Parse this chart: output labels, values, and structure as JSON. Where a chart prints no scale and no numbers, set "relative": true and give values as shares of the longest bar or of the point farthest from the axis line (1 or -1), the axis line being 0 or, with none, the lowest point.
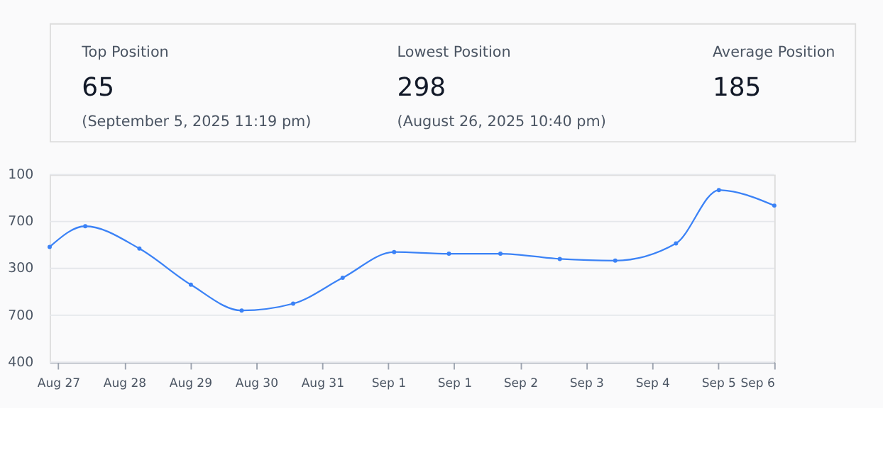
{
  "chart_data": [
    {
      "type": "other",
      "annotations": [
        "Top Position",
        "65",
        "(September 5, 2025 11:19 pm)",
        "Lowest Position",
        "298",
        "(August 26, 2025 10:40 pm)",
        "Average Position",
        "185"
      ]
    },
    {
      "type": "line",
      "relative": true,
      "x": [
        "2025-08-27T03:46",
        "2025-08-27T16:04",
        "2025-08-28T10:46",
        "2025-08-29T04:33",
        "2025-08-29T22:06",
        "2025-08-30T15:53",
        "2025-08-31T08:59",
        "2025-09-01T02:46",
        "2025-09-01T21:42",
        "2025-09-02T15:29",
        "2025-09-03T12:00",
        "2025-09-04T07:09",
        "2025-09-05T04:08",
        "2025-09-05T18:57",
        "2025-09-06T14:06"
      ],
      "series": [
        {
          "color": "#3b82f6",
          "values": [
            0.67,
            0.79,
            0.66,
            0.45,
            0.3,
            0.34,
            0.49,
            0.64,
            0.63,
            0.63,
            0.6,
            0.59,
            0.69,
            1,
            0.91
          ]
        }
      ],
      "xlim": [
        "2025-08-27T03:46",
        "2025-09-06T14:06"
      ],
      "xticks": [
        {
          "value": "2025-08-27T06:43",
          "label": "Aug 27"
        },
        {
          "value": "2025-08-28T05:31",
          "label": "Aug 28"
        },
        {
          "value": "2025-08-29T04:19",
          "label": "Aug 29"
        },
        {
          "value": "2025-08-30T03:07",
          "label": "Aug 30"
        },
        {
          "value": "2025-08-31T01:55",
          "label": "Aug 31"
        },
        {
          "value": "2025-09-01T00:43",
          "label": "Sep 1"
        },
        {
          "value": "2025-09-01T23:31",
          "label": "Sep 1"
        },
        {
          "value": "2025-09-02T22:19",
          "label": "Sep 2"
        },
        {
          "value": "2025-09-03T21:07",
          "label": "Sep 3"
        },
        {
          "value": "2025-09-04T19:55",
          "label": "Sep 4"
        },
        {
          "value": "2025-09-05T18:43",
          "label": "Sep 5"
        },
        {
          "value": "2025-09-06T14:06",
          "label": "Sep 6"
        }
      ],
      "annotations": [
        "100",
        "700",
        "300",
        "700",
        "400"
      ],
      "grid": "y",
      "marker": "circle",
      "line_style": "solid"
    }
  ]
}
